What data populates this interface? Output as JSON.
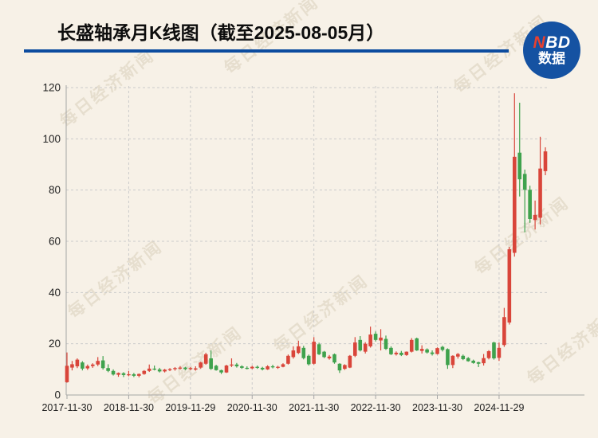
{
  "header": {
    "title": "长盛轴承月K线图（截至2025-08-05月）"
  },
  "logo": {
    "line1_red": "N",
    "line1_white": "BD",
    "line2": "数据"
  },
  "watermark": {
    "text": "每日经济新闻"
  },
  "chart_data": {
    "type": "candlestick",
    "period": "monthly",
    "title": "长盛轴承月K线图（截至2025-08-05月）",
    "legend_position": "none",
    "grid": true,
    "y_axis": {
      "range": [
        0,
        120
      ],
      "ticks": [
        0,
        20,
        40,
        60,
        80,
        100,
        120
      ],
      "tick_labels": [
        "0",
        "20",
        "40",
        "60",
        "80",
        "100",
        "120"
      ]
    },
    "x_axis": {
      "tick_labels": [
        "2017-11-30",
        "2018-11-30",
        "2019-11-29",
        "2020-11-30",
        "2021-11-30",
        "2022-11-30",
        "2023-11-30",
        "2024-11-29"
      ],
      "tick_month_indices": [
        0,
        12,
        24,
        36,
        48,
        60,
        72,
        84
      ]
    },
    "colors": {
      "up": "#d9453a",
      "down": "#3fa24d",
      "grid": "#cbcbcb",
      "axis": "#a6a6a6",
      "label": "#222222"
    },
    "candles_format": [
      "month",
      "open",
      "high",
      "low",
      "close"
    ],
    "candles": [
      [
        "2017-11",
        5.0,
        16.6,
        4.8,
        11.4
      ],
      [
        "2017-12",
        10.7,
        13.3,
        9.6,
        12.0
      ],
      [
        "2018-01",
        11.2,
        14.3,
        10.5,
        13.8
      ],
      [
        "2018-02",
        12.7,
        13.2,
        9.6,
        10.3
      ],
      [
        "2018-03",
        10.4,
        11.9,
        9.8,
        11.3
      ],
      [
        "2018-04",
        11.3,
        12.4,
        10.6,
        11.9
      ],
      [
        "2018-05",
        11.9,
        14.8,
        11.3,
        13.3
      ],
      [
        "2018-06",
        13.5,
        15.2,
        9.9,
        10.5
      ],
      [
        "2018-07",
        10.5,
        12.0,
        8.9,
        9.4
      ],
      [
        "2018-08",
        9.4,
        10.0,
        7.6,
        8.0
      ],
      [
        "2018-09",
        7.9,
        8.8,
        7.1,
        8.6
      ],
      [
        "2018-10",
        8.5,
        8.9,
        7.0,
        7.8
      ],
      [
        "2018-11",
        7.8,
        9.4,
        7.3,
        8.1
      ],
      [
        "2018-12",
        8.1,
        8.6,
        7.0,
        7.5
      ],
      [
        "2019-01",
        7.5,
        8.4,
        6.9,
        8.2
      ],
      [
        "2019-02",
        8.2,
        9.7,
        7.9,
        9.4
      ],
      [
        "2019-03",
        9.4,
        11.9,
        9.0,
        10.3
      ],
      [
        "2019-04",
        10.3,
        11.5,
        9.6,
        10.0
      ],
      [
        "2019-05",
        10.0,
        10.6,
        8.8,
        9.2
      ],
      [
        "2019-06",
        9.2,
        10.2,
        8.8,
        9.9
      ],
      [
        "2019-07",
        9.9,
        10.5,
        9.3,
        10.1
      ],
      [
        "2019-08",
        10.1,
        10.9,
        9.5,
        10.5
      ],
      [
        "2019-09",
        10.5,
        11.3,
        9.9,
        10.7
      ],
      [
        "2019-10",
        10.7,
        11.0,
        9.7,
        10.1
      ],
      [
        "2019-11",
        10.1,
        10.9,
        9.7,
        10.5
      ],
      [
        "2019-12",
        9.9,
        11.2,
        9.5,
        10.4
      ],
      [
        "2020-01",
        10.7,
        13.0,
        10.3,
        12.7
      ],
      [
        "2020-02",
        12.2,
        16.5,
        11.8,
        15.9
      ],
      [
        "2020-03",
        14.3,
        17.4,
        9.8,
        10.2
      ],
      [
        "2020-04",
        11.4,
        11.8,
        9.5,
        9.7
      ],
      [
        "2020-05",
        9.7,
        9.9,
        8.2,
        8.8
      ],
      [
        "2020-06",
        8.8,
        11.8,
        8.6,
        11.5
      ],
      [
        "2020-07",
        11.5,
        14.3,
        10.9,
        11.9
      ],
      [
        "2020-08",
        11.9,
        12.5,
        10.7,
        11.2
      ],
      [
        "2020-09",
        11.2,
        11.6,
        10.2,
        10.6
      ],
      [
        "2020-10",
        10.6,
        11.2,
        10.0,
        10.4
      ],
      [
        "2020-11",
        10.4,
        11.4,
        10.1,
        11.0
      ],
      [
        "2020-12",
        11.0,
        11.5,
        10.2,
        10.6
      ],
      [
        "2021-01",
        10.6,
        11.0,
        9.6,
        10.0
      ],
      [
        "2021-02",
        10.0,
        11.6,
        9.8,
        11.2
      ],
      [
        "2021-03",
        11.2,
        11.8,
        10.4,
        10.8
      ],
      [
        "2021-04",
        10.8,
        11.4,
        10.2,
        11.0
      ],
      [
        "2021-05",
        11.0,
        12.4,
        10.8,
        12.0
      ],
      [
        "2021-06",
        12.2,
        15.8,
        11.9,
        15.3
      ],
      [
        "2021-07",
        14.8,
        19.0,
        14.2,
        17.4
      ],
      [
        "2021-08",
        16.4,
        21.2,
        16.0,
        19.0
      ],
      [
        "2021-09",
        18.4,
        19.2,
        13.9,
        14.4
      ],
      [
        "2021-10",
        15.3,
        15.8,
        11.5,
        12.0
      ],
      [
        "2021-11",
        12.2,
        22.6,
        11.9,
        20.8
      ],
      [
        "2021-12",
        19.8,
        20.4,
        15.6,
        15.9
      ],
      [
        "2022-01",
        16.9,
        17.2,
        14.4,
        14.8
      ],
      [
        "2022-02",
        14.3,
        15.6,
        13.8,
        15.0
      ],
      [
        "2022-03",
        15.9,
        16.2,
        12.2,
        12.7
      ],
      [
        "2022-04",
        12.2,
        12.4,
        8.6,
        9.6
      ],
      [
        "2022-05",
        10.2,
        12.0,
        9.8,
        11.7
      ],
      [
        "2022-06",
        10.7,
        15.6,
        10.5,
        15.3
      ],
      [
        "2022-07",
        15.3,
        22.6,
        14.8,
        20.5
      ],
      [
        "2022-08",
        21.5,
        23.0,
        17.0,
        17.4
      ],
      [
        "2022-09",
        16.9,
        20.6,
        16.2,
        20.0
      ],
      [
        "2022-10",
        19.0,
        26.7,
        18.5,
        23.6
      ],
      [
        "2022-11",
        23.9,
        24.8,
        20.9,
        21.5
      ],
      [
        "2022-12",
        21.3,
        25.7,
        17.4,
        22.4
      ],
      [
        "2023-01",
        21.9,
        23.2,
        17.6,
        18.0
      ],
      [
        "2023-02",
        18.4,
        19.0,
        15.6,
        15.9
      ],
      [
        "2023-03",
        15.9,
        17.0,
        15.4,
        16.5
      ],
      [
        "2023-04",
        16.5,
        17.2,
        15.2,
        15.6
      ],
      [
        "2023-05",
        15.6,
        17.0,
        15.3,
        16.9
      ],
      [
        "2023-06",
        16.9,
        22.2,
        16.6,
        21.5
      ],
      [
        "2023-07",
        22.1,
        22.4,
        17.2,
        17.4
      ],
      [
        "2023-08",
        17.2,
        19.4,
        16.2,
        18.0
      ],
      [
        "2023-09",
        17.8,
        18.2,
        16.2,
        16.6
      ],
      [
        "2023-10",
        16.6,
        17.4,
        15.4,
        16.0
      ],
      [
        "2023-11",
        16.0,
        18.6,
        15.8,
        18.3
      ],
      [
        "2023-12",
        18.8,
        19.2,
        17.0,
        17.6
      ],
      [
        "2024-01",
        17.9,
        18.2,
        10.2,
        11.7
      ],
      [
        "2024-02",
        11.7,
        15.5,
        10.5,
        15.3
      ],
      [
        "2024-03",
        15.0,
        16.4,
        14.2,
        16.0
      ],
      [
        "2024-04",
        15.3,
        15.8,
        13.6,
        14.0
      ],
      [
        "2024-05",
        14.4,
        14.8,
        13.0,
        13.2
      ],
      [
        "2024-06",
        13.4,
        13.8,
        12.2,
        12.5
      ],
      [
        "2024-07",
        12.8,
        13.0,
        10.9,
        12.2
      ],
      [
        "2024-08",
        12.4,
        16.0,
        11.5,
        14.4
      ],
      [
        "2024-09",
        14.4,
        17.5,
        13.9,
        17.1
      ],
      [
        "2024-10",
        20.5,
        20.8,
        13.8,
        14.3
      ],
      [
        "2024-11",
        14.5,
        20.5,
        13.3,
        18.4
      ],
      [
        "2024-12",
        19.5,
        34.0,
        18.8,
        30.4
      ],
      [
        "2025-01",
        28.3,
        57.8,
        27.5,
        56.9
      ],
      [
        "2025-02",
        55.5,
        117.8,
        54.0,
        93.0
      ],
      [
        "2025-03",
        94.6,
        114.1,
        77.5,
        84.2
      ],
      [
        "2025-04",
        86.3,
        88.0,
        63.5,
        80.1
      ],
      [
        "2025-05",
        80.1,
        81.7,
        67.2,
        68.7
      ],
      [
        "2025-06",
        68.3,
        75.9,
        64.6,
        70.3
      ],
      [
        "2025-07",
        69.2,
        100.8,
        66.6,
        88.4
      ],
      [
        "2025-08",
        87.4,
        96.7,
        85.8,
        95.1
      ]
    ]
  }
}
